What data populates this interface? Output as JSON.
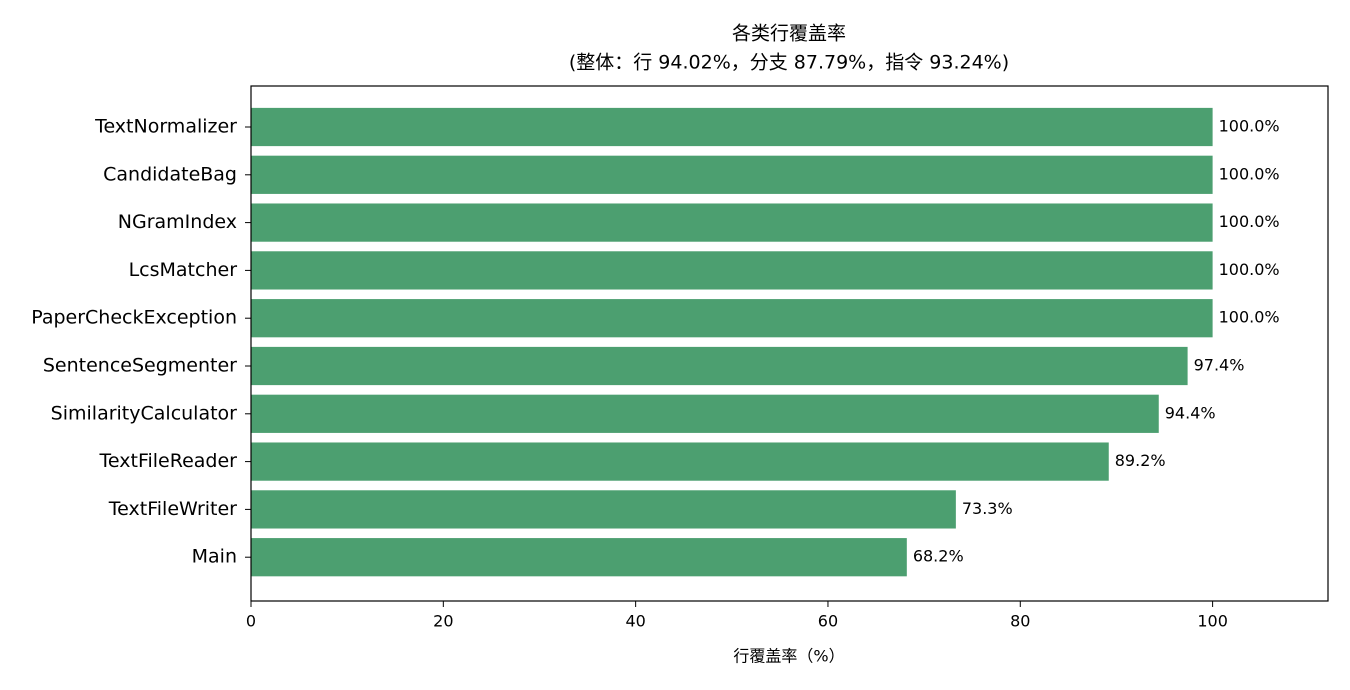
{
  "chart_data": {
    "type": "barh",
    "title": "各类行覆盖率",
    "subtitle": "(整体：行 94.02%，分支 87.79%，指令 93.24%)",
    "xlabel": "行覆盖率（%）",
    "categories": [
      "TextNormalizer",
      "CandidateBag",
      "NGramIndex",
      "LcsMatcher",
      "PaperCheckException",
      "SentenceSegmenter",
      "SimilarityCalculator",
      "TextFileReader",
      "TextFileWriter",
      "Main"
    ],
    "values": [
      100,
      100,
      100,
      100,
      100,
      97.4,
      94.4,
      89.2,
      73.3,
      68.2
    ],
    "value_labels": [
      "100.0%",
      "100.0%",
      "100.0%",
      "100.0%",
      "100.0%",
      "97.4%",
      "94.4%",
      "89.2%",
      "73.3%",
      "68.2%"
    ],
    "color": "#4c9f70",
    "xlim": [
      0,
      112
    ],
    "xticks": [
      0,
      20,
      40,
      60,
      80,
      100
    ],
    "grid": false
  }
}
